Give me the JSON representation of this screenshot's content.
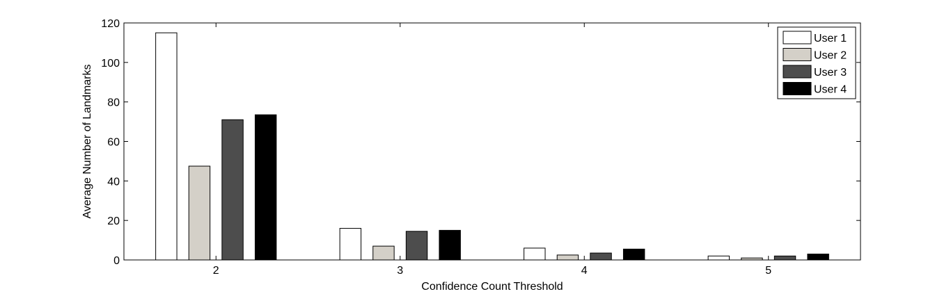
{
  "chart_data": {
    "type": "bar",
    "categories": [
      "2",
      "3",
      "4",
      "5"
    ],
    "series": [
      {
        "name": "User 1",
        "values": [
          115,
          16,
          6,
          2
        ],
        "color": "#ffffff"
      },
      {
        "name": "User 2",
        "values": [
          47.5,
          7,
          2.5,
          1
        ],
        "color": "#d4d0c8"
      },
      {
        "name": "User 3",
        "values": [
          71,
          14.5,
          3.5,
          2
        ],
        "color": "#4d4d4d"
      },
      {
        "name": "User 4",
        "values": [
          73.5,
          15,
          5.5,
          3
        ],
        "color": "#000000"
      }
    ],
    "title": "",
    "xlabel": "Confidence Count Threshold",
    "ylabel": "Average Number of Landmarks",
    "ylim": [
      0,
      120
    ],
    "yticks": [
      0,
      20,
      40,
      60,
      80,
      100,
      120
    ],
    "grid": false,
    "legend_position": "top-right"
  }
}
